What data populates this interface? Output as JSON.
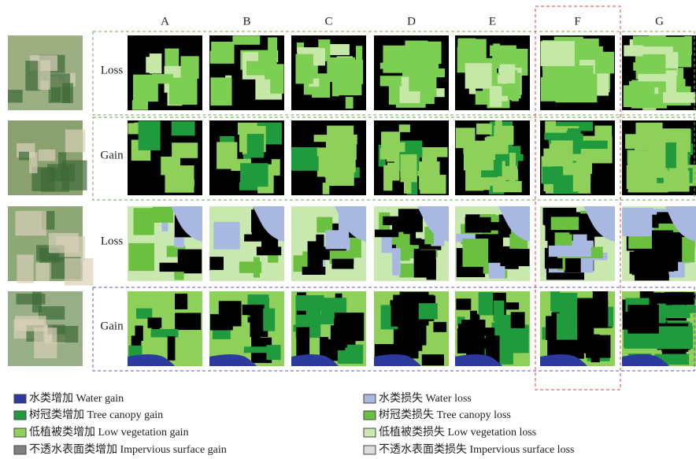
{
  "figure": {
    "columns": [
      "A",
      "B",
      "C",
      "D",
      "E",
      "F",
      "G"
    ],
    "rows": [
      "Loss",
      "Gain",
      "Loss",
      "Gain"
    ],
    "legend_left": [
      "水类增加 Water gain",
      "树冠类增加 Tree canopy gain",
      "低植被类增加 Low vegetation gain",
      "不透水表面类增加 Impervious surface gain"
    ],
    "legend_right": [
      "水类损失  Water loss",
      "树冠类损失   Tree canopy loss",
      "低植被类损失  Low vegetation loss",
      "不透水表面类损失  Impervious surface loss"
    ]
  }
}
